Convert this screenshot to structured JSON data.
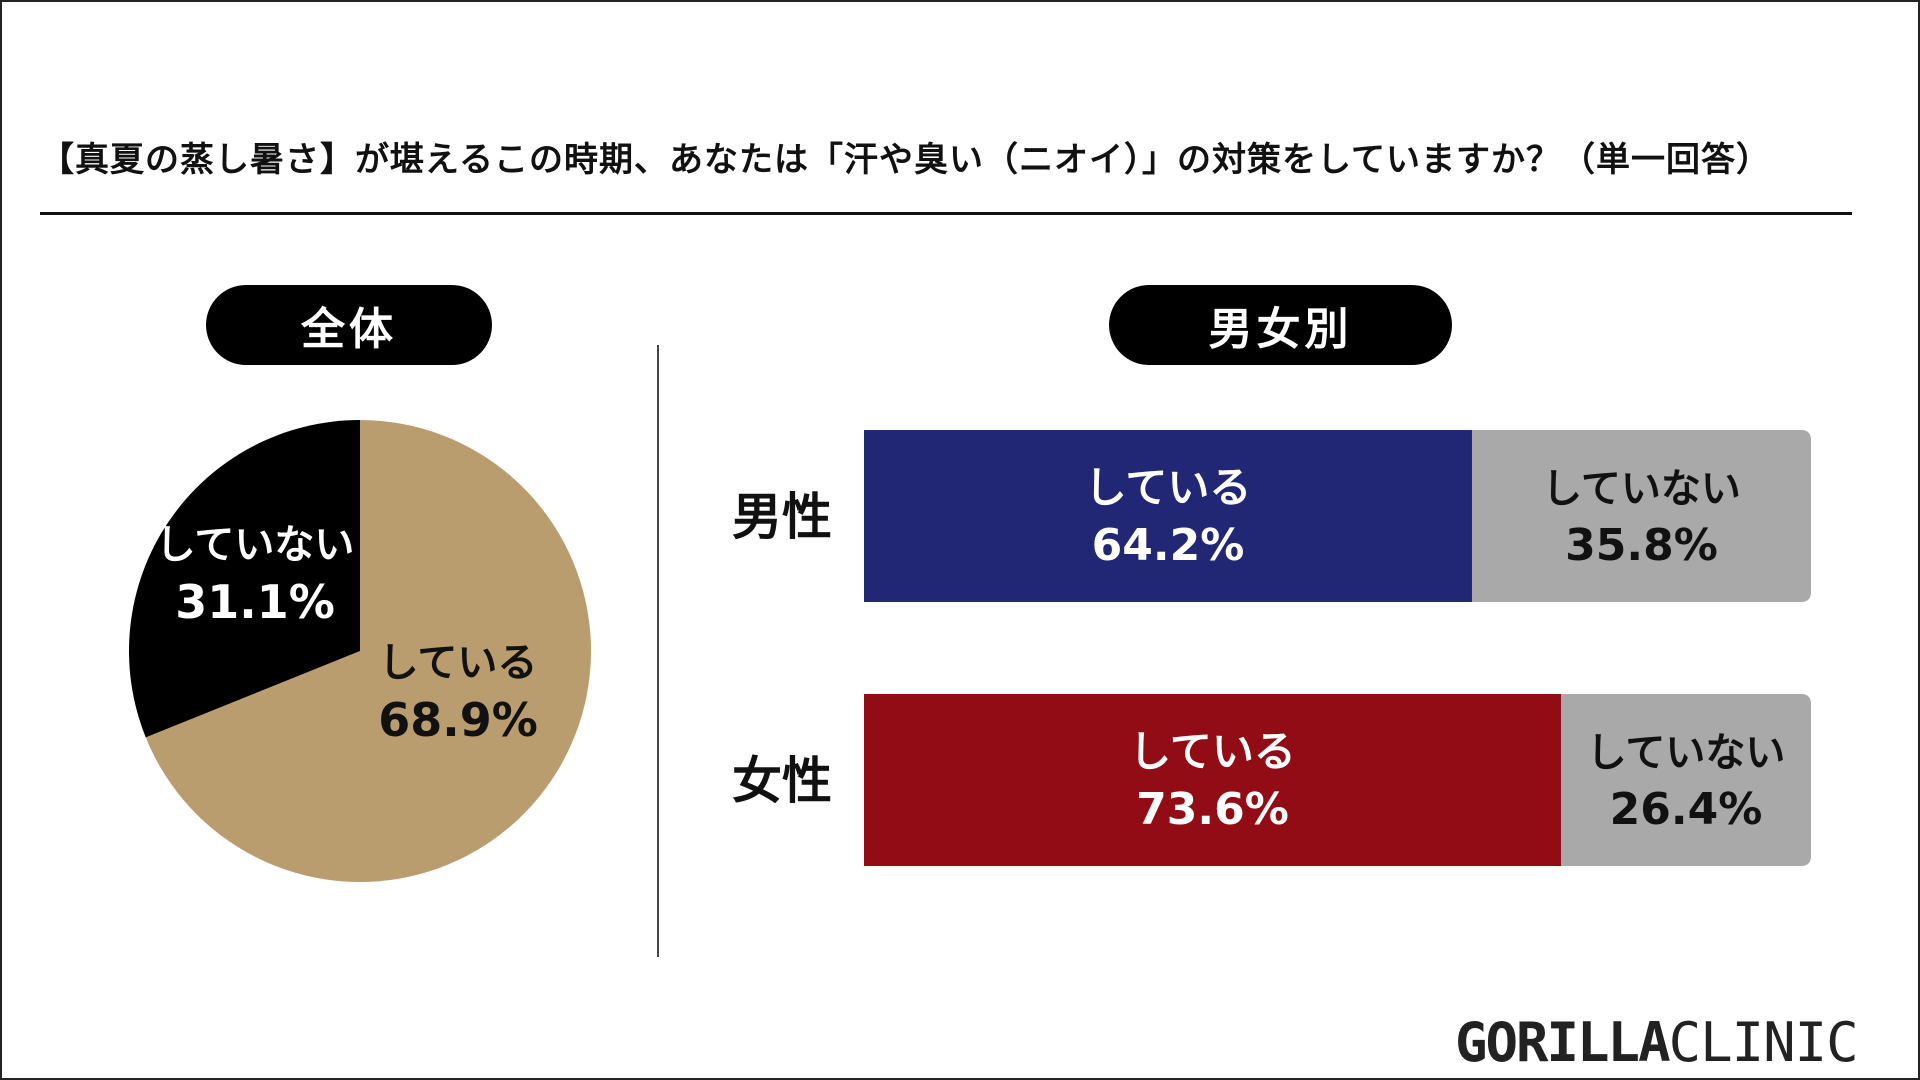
{
  "title": "【真夏の蒸し暑さ】が堪えるこの時期、あなたは「汗や臭い（ニオイ）」の対策をしていますか？（単一回答）",
  "overall_header": "全体",
  "gender_header": "男女別",
  "logo": {
    "bold": "GORILLA",
    "thin": "CLINIC"
  },
  "colors": {
    "pie_doing": "#B99D6F",
    "pie_not": "#000000",
    "male_doing": "#212774",
    "female_doing": "#920C15",
    "not_doing_bar": "#A9A9A9"
  },
  "chart_data": [
    {
      "type": "pie",
      "title": "全体",
      "labels": [
        "している",
        "していない"
      ],
      "values": [
        68.9,
        31.1
      ],
      "value_labels": [
        "68.9%",
        "31.1%"
      ]
    },
    {
      "type": "bar",
      "orientation": "horizontal",
      "stacked": true,
      "title": "男女別",
      "categories": [
        "男性",
        "女性"
      ],
      "series": [
        {
          "name": "している",
          "values": [
            64.2,
            73.6
          ],
          "value_labels": [
            "64.2%",
            "73.6%"
          ]
        },
        {
          "name": "していない",
          "values": [
            35.8,
            26.4
          ],
          "value_labels": [
            "35.8%",
            "26.4%"
          ]
        }
      ],
      "xlim": [
        0,
        100
      ]
    }
  ]
}
